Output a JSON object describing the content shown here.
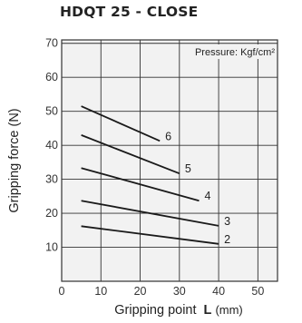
{
  "chart_data": {
    "type": "line",
    "title": "HDQT 25 - CLOSE",
    "xlabel": "Gripping point",
    "xlabel_bold": "L",
    "xlabel_unit": "(mm)",
    "ylabel": "Gripping force (N)",
    "annotation": "Pressure: Kgf/cm²",
    "xlim": [
      0,
      55
    ],
    "ylim": [
      0,
      71
    ],
    "xticks": [
      "0",
      "10",
      "20",
      "30",
      "40",
      "50"
    ],
    "yticks": [
      "10",
      "20",
      "30",
      "40",
      "50",
      "60",
      "70"
    ],
    "grid": true,
    "series_color": "#1a1a1a",
    "grid_color": "#333333",
    "plot_background": "#f2f2f2",
    "series": [
      {
        "name": "2",
        "x": [
          5,
          40
        ],
        "y": [
          16.2,
          11
        ]
      },
      {
        "name": "3",
        "x": [
          5,
          40
        ],
        "y": [
          23.7,
          16.3
        ]
      },
      {
        "name": "4",
        "x": [
          5,
          35
        ],
        "y": [
          33.3,
          23.7
        ]
      },
      {
        "name": "5",
        "x": [
          5,
          30
        ],
        "y": [
          43,
          31.7
        ]
      },
      {
        "name": "6",
        "x": [
          5,
          25
        ],
        "y": [
          51.5,
          41.3
        ]
      }
    ]
  }
}
